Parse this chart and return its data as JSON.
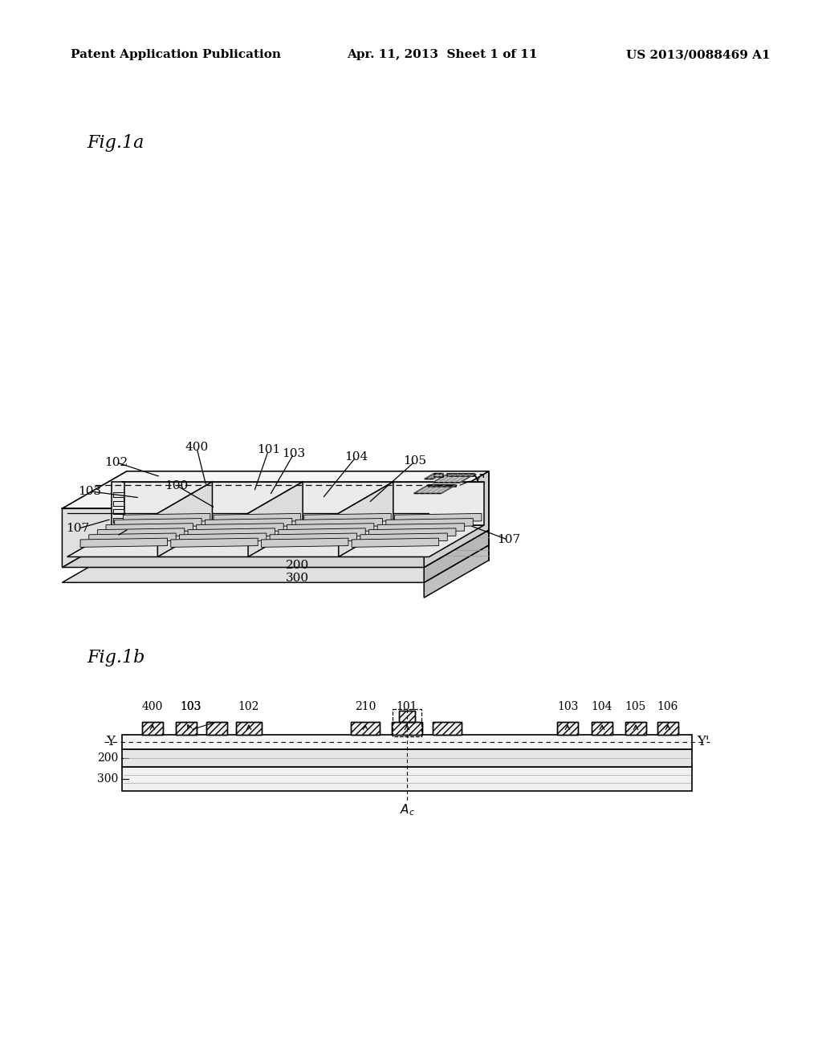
{
  "background_color": "#ffffff",
  "header_left": "Patent Application Publication",
  "header_center": "Apr. 11, 2013  Sheet 1 of 11",
  "header_right": "US 2013/0088469 A1",
  "fig1a_label": "Fig.1a",
  "fig1b_label": "Fig.1b",
  "line_color": "#000000"
}
